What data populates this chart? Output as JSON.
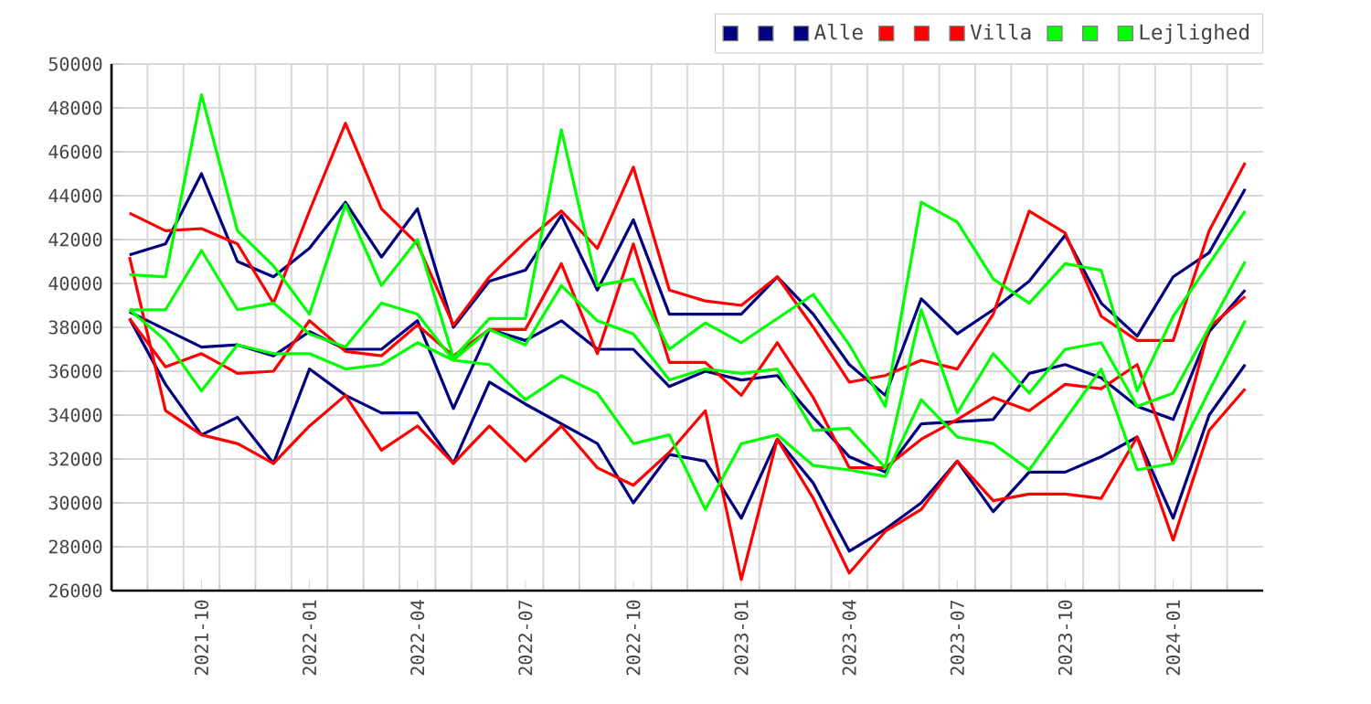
{
  "chart_data": {
    "type": "line",
    "x": [
      "2021-08",
      "2021-09",
      "2021-10",
      "2021-11",
      "2021-12",
      "2022-01",
      "2022-02",
      "2022-03",
      "2022-04",
      "2022-05",
      "2022-06",
      "2022-07",
      "2022-08",
      "2022-09",
      "2022-10",
      "2022-11",
      "2022-12",
      "2023-01",
      "2023-02",
      "2023-03",
      "2023-04",
      "2023-05",
      "2023-06",
      "2023-07",
      "2023-08",
      "2023-09",
      "2023-10",
      "2023-11",
      "2023-12",
      "2024-01",
      "2024-02",
      "2024-03"
    ],
    "series": [
      {
        "color": "#000080",
        "values": [
          41300,
          41800,
          45000,
          41000,
          40300,
          41600,
          43700,
          41200,
          43400,
          38000,
          40100,
          40600,
          43100,
          39700,
          42900,
          38600,
          38600,
          38600,
          40300,
          38600,
          36300,
          34900,
          39300,
          37700,
          38800,
          40100,
          42200,
          39100,
          37600,
          40300,
          41400,
          44300
        ]
      },
      {
        "color": "#000080",
        "values": [
          38700,
          37900,
          37100,
          37200,
          36700,
          37800,
          37000,
          37000,
          38300,
          34300,
          37900,
          37400,
          38300,
          37000,
          37000,
          35300,
          36000,
          35600,
          35800,
          33900,
          32100,
          31400,
          33600,
          33700,
          33800,
          35900,
          36300,
          35700,
          34400,
          33800,
          37800,
          39700
        ]
      },
      {
        "name": "Alle",
        "color": "#000080",
        "values": [
          38400,
          35400,
          33100,
          33900,
          31800,
          36100,
          34900,
          34100,
          34100,
          31800,
          35500,
          34500,
          33600,
          32700,
          30000,
          32200,
          31900,
          29300,
          32900,
          30900,
          27800,
          28800,
          30000,
          31900,
          29600,
          31400,
          31400,
          32100,
          33000,
          29300,
          34000,
          36300
        ]
      },
      {
        "color": "#ff0000",
        "values": [
          43200,
          42400,
          42500,
          41800,
          39100,
          43300,
          47300,
          43400,
          41800,
          38100,
          40300,
          41900,
          43300,
          41600,
          45300,
          39700,
          39200,
          39000,
          40300,
          38000,
          35500,
          35800,
          36500,
          36100,
          38600,
          43300,
          42300,
          38500,
          37400,
          37400,
          42400,
          45500
        ]
      },
      {
        "color": "#ff0000",
        "values": [
          38400,
          36200,
          36800,
          35900,
          36000,
          38300,
          36900,
          36700,
          38100,
          36700,
          37900,
          37900,
          40900,
          36800,
          41800,
          36400,
          36400,
          34900,
          37300,
          34800,
          31600,
          31600,
          32900,
          33800,
          34800,
          34200,
          35400,
          35200,
          36300,
          31800,
          38000,
          39400
        ]
      },
      {
        "name": "Villa",
        "color": "#ff0000",
        "values": [
          41200,
          34200,
          33100,
          32700,
          31800,
          33500,
          34900,
          32400,
          33500,
          31800,
          33500,
          31900,
          33500,
          31600,
          30800,
          32300,
          34200,
          26500,
          32900,
          30200,
          26800,
          28700,
          29700,
          31900,
          30100,
          30400,
          30400,
          30200,
          33000,
          28300,
          33300,
          35200
        ]
      },
      {
        "color": "#00ff00",
        "values": [
          40400,
          40300,
          48600,
          42400,
          40800,
          38600,
          43600,
          39900,
          42000,
          36600,
          38400,
          38400,
          47000,
          39900,
          40200,
          37000,
          38200,
          37300,
          38400,
          39500,
          37200,
          34400,
          43700,
          42800,
          40200,
          39100,
          40900,
          40600,
          35100,
          38500,
          40900,
          43300
        ]
      },
      {
        "color": "#00ff00",
        "values": [
          38800,
          38800,
          41500,
          38800,
          39100,
          37700,
          37100,
          39100,
          38600,
          36500,
          37900,
          37200,
          39900,
          38300,
          37700,
          35600,
          36100,
          35900,
          36100,
          33300,
          33400,
          31600,
          38800,
          34100,
          36800,
          35000,
          37000,
          37300,
          34400,
          35000,
          38000,
          41000
        ]
      },
      {
        "name": "Lejlighed",
        "color": "#00ff00",
        "values": [
          38800,
          37400,
          35100,
          37200,
          36800,
          36800,
          36100,
          36300,
          37300,
          36500,
          36300,
          34700,
          35800,
          35000,
          32700,
          33100,
          29700,
          32700,
          33100,
          31700,
          31500,
          31200,
          34700,
          33000,
          32700,
          31500,
          33800,
          36100,
          31500,
          31800,
          35100,
          38300
        ]
      }
    ],
    "xlim": [
      "2021-07-16",
      "2024-03-16"
    ],
    "xticks": [
      {
        "value": "2021-10",
        "label": "2021-10"
      },
      {
        "value": "2022-01",
        "label": "2022-01"
      },
      {
        "value": "2022-04",
        "label": "2022-04"
      },
      {
        "value": "2022-07",
        "label": "2022-07"
      },
      {
        "value": "2022-10",
        "label": "2022-10"
      },
      {
        "value": "2023-01",
        "label": "2023-01"
      },
      {
        "value": "2023-04",
        "label": "2023-04"
      },
      {
        "value": "2023-07",
        "label": "2023-07"
      },
      {
        "value": "2023-10",
        "label": "2023-10"
      },
      {
        "value": "2024-01",
        "label": "2024-01"
      },
      {
        "value": "2021-08-16",
        "label": null
      },
      {
        "value": "2021-09-16",
        "label": null
      },
      {
        "value": "2021-10-16",
        "label": null
      },
      {
        "value": "2021-11-16",
        "label": null
      },
      {
        "value": "2021-12-16",
        "label": null
      },
      {
        "value": "2022-01-16",
        "label": null
      },
      {
        "value": "2022-02-16",
        "label": null
      },
      {
        "value": "2022-03-16",
        "label": null
      },
      {
        "value": "2022-04-16",
        "label": null
      },
      {
        "value": "2022-05-16",
        "label": null
      },
      {
        "value": "2022-06-16",
        "label": null
      },
      {
        "value": "2022-07-16",
        "label": null
      },
      {
        "value": "2022-08-16",
        "label": null
      },
      {
        "value": "2022-09-16",
        "label": null
      },
      {
        "value": "2022-10-16",
        "label": null
      },
      {
        "value": "2022-11-16",
        "label": null
      },
      {
        "value": "2022-12-16",
        "label": null
      },
      {
        "value": "2023-01-16",
        "label": null
      },
      {
        "value": "2023-02-16",
        "label": null
      },
      {
        "value": "2023-03-16",
        "label": null
      },
      {
        "value": "2023-04-16",
        "label": null
      },
      {
        "value": "2023-05-16",
        "label": null
      },
      {
        "value": "2023-06-16",
        "label": null
      },
      {
        "value": "2023-07-16",
        "label": null
      },
      {
        "value": "2023-08-16",
        "label": null
      },
      {
        "value": "2023-09-16",
        "label": null
      },
      {
        "value": "2023-10-16",
        "label": null
      },
      {
        "value": "2023-11-16",
        "label": null
      },
      {
        "value": "2023-12-16",
        "label": null
      },
      {
        "value": "2024-01-16",
        "label": null
      },
      {
        "value": "2024-02-16",
        "label": null
      }
    ],
    "ylim": [
      26000,
      50000
    ],
    "yticks": [
      26000,
      28000,
      30000,
      32000,
      34000,
      36000,
      38000,
      40000,
      42000,
      44000,
      46000,
      48000,
      50000
    ],
    "grid": true,
    "legend": "top right",
    "line_style": "solid",
    "marker": "none"
  }
}
